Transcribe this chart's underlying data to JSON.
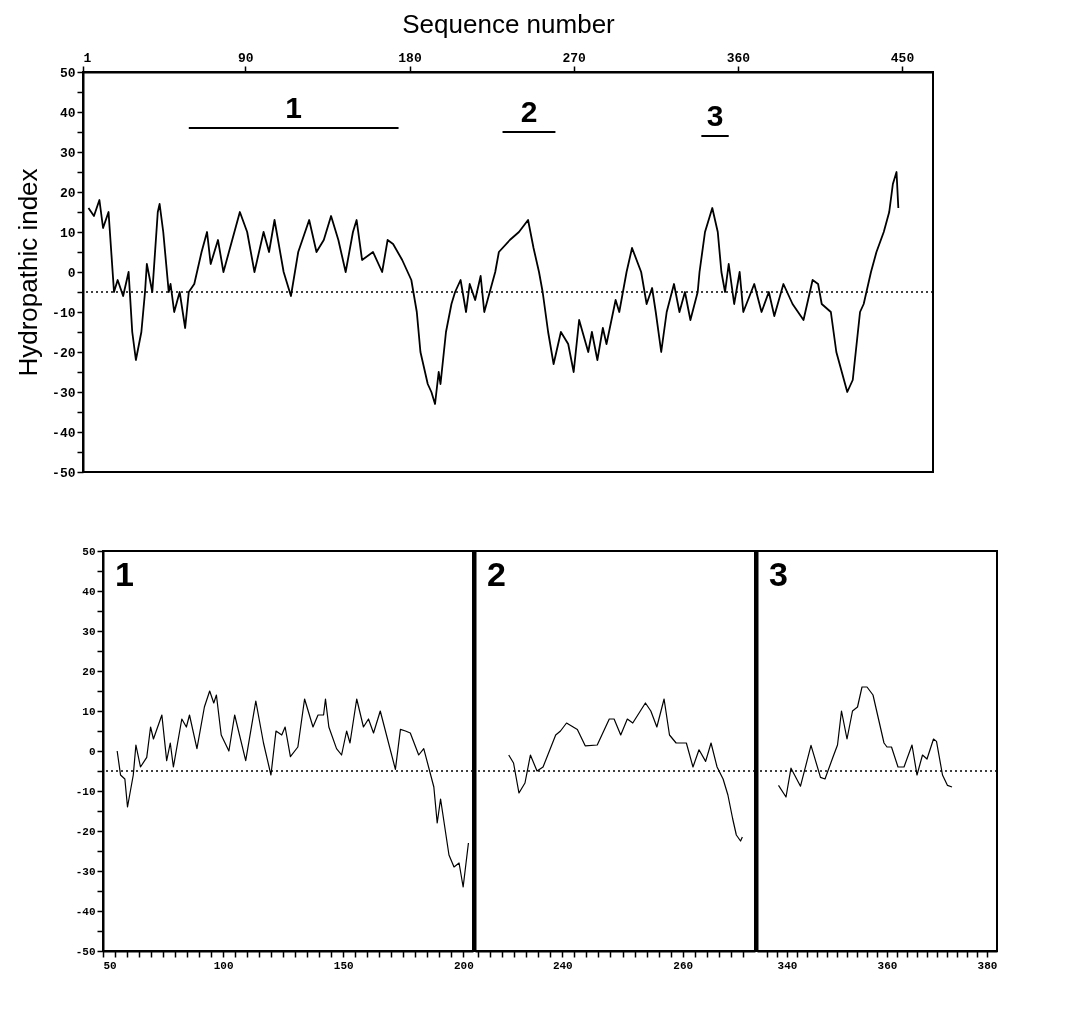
{
  "chart_data": [
    {
      "type": "line",
      "xlabel": "Sequence number",
      "ylabel": "Hydropathic index",
      "xlim": [
        1,
        467
      ],
      "xticks": [
        1,
        90,
        180,
        270,
        360,
        450
      ],
      "ylim": [
        -50,
        50
      ],
      "yticks": [
        -50,
        {
          "value": -45,
          "label": null
        },
        -40,
        {
          "value": -35,
          "label": null
        },
        -30,
        {
          "value": -25,
          "label": null
        },
        -20,
        {
          "value": -15,
          "label": null
        },
        -10,
        {
          "value": -5,
          "label": null
        },
        0,
        {
          "value": 5,
          "label": null
        },
        10,
        {
          "value": 15,
          "label": null
        },
        20,
        {
          "value": 25,
          "label": null
        },
        30,
        {
          "value": 35,
          "label": null
        },
        40,
        {
          "value": 45,
          "label": null
        },
        50
      ],
      "series": [
        {
          "color": "#000000",
          "x": [
            4,
            7,
            10,
            12,
            15,
            18,
            20,
            23,
            26,
            28,
            30,
            33,
            35,
            36,
            39,
            42,
            43,
            45,
            48,
            49,
            51,
            54,
            57,
            59,
            62,
            66,
            69,
            71,
            75,
            78,
            87,
            91,
            95,
            100,
            103,
            106,
            111,
            115,
            119,
            125,
            129,
            133,
            137,
            141,
            145,
            149,
            151,
            154,
            160,
            165,
            168,
            171,
            176,
            181,
            184,
            186,
            190,
            192,
            194,
            196,
            197,
            200,
            203,
            205,
            208,
            211,
            213,
            216,
            219,
            221,
            224,
            227,
            229,
            235,
            240,
            245,
            248,
            251,
            253,
            256,
            259,
            263,
            267,
            270,
            273,
            278,
            280,
            283,
            286,
            288,
            293,
            295,
            299,
            302,
            307,
            310,
            313,
            315,
            318,
            321,
            325,
            328,
            331,
            334,
            338,
            339,
            342,
            346,
            349,
            351,
            353,
            355,
            358,
            361,
            363,
            369,
            373,
            377,
            380,
            385,
            390,
            396,
            401,
            404,
            406,
            411,
            414,
            417,
            420,
            423,
            427,
            429,
            433,
            436,
            440,
            443,
            445,
            447,
            448
          ],
          "values": [
            16,
            14,
            18,
            11,
            15,
            -5,
            -2,
            -6,
            0,
            -15,
            -22,
            -15,
            -5,
            2,
            -5,
            15,
            17,
            10,
            -5,
            -3,
            -10,
            -5,
            -14,
            -5,
            -3,
            5,
            10,
            2,
            8,
            0,
            15,
            10,
            0,
            10,
            5,
            13,
            0,
            -6,
            5,
            13,
            5,
            8,
            14,
            8,
            0,
            10,
            13,
            3,
            5,
            0,
            8,
            7,
            3,
            -2,
            -10,
            -20,
            -28,
            -30,
            -33,
            -25,
            -28,
            -15,
            -8,
            -5,
            -2,
            -10,
            -3,
            -7,
            -1,
            -10,
            -5,
            0,
            5,
            8,
            10,
            13,
            6,
            0,
            -5,
            -15,
            -23,
            -15,
            -18,
            -25,
            -12,
            -20,
            -15,
            -22,
            -14,
            -18,
            -7,
            -10,
            0,
            6,
            0,
            -8,
            -4,
            -10,
            -20,
            -10,
            -3,
            -10,
            -5,
            -12,
            -5,
            0,
            10,
            16,
            10,
            0,
            -5,
            2,
            -8,
            0,
            -10,
            -3,
            -10,
            -5,
            -11,
            -3,
            -8,
            -12,
            -2,
            -3,
            -8,
            -10,
            -20,
            -25,
            -30,
            -27,
            -10,
            -8,
            0,
            5,
            10,
            15,
            22,
            25,
            16
          ]
        },
        {
          "name": "1",
          "color": "#000000",
          "x": [
            59,
            174
          ],
          "values": [
            36,
            36
          ]
        },
        {
          "name": "2",
          "color": "#000000",
          "x": [
            231,
            260
          ],
          "values": [
            35,
            35
          ]
        },
        {
          "name": "3",
          "color": "#000000",
          "x": [
            340,
            355
          ],
          "values": [
            34,
            34
          ]
        }
      ],
      "ref_lines": [
        {
          "axis": "y",
          "value": -5,
          "line_style": "dotted"
        }
      ]
    },
    {
      "type": "line",
      "xlim": [
        50,
        204
      ],
      "xticks": [
        50,
        {
          "value": 55,
          "label": null
        },
        {
          "value": 60,
          "label": null
        },
        {
          "value": 65,
          "label": null
        },
        {
          "value": 70,
          "label": null
        },
        {
          "value": 75,
          "label": null
        },
        {
          "value": 80,
          "label": null
        },
        {
          "value": 85,
          "label": null
        },
        {
          "value": 90,
          "label": null
        },
        {
          "value": 95,
          "label": null
        },
        100,
        {
          "value": 105,
          "label": null
        },
        {
          "value": 110,
          "label": null
        },
        {
          "value": 115,
          "label": null
        },
        {
          "value": 120,
          "label": null
        },
        {
          "value": 125,
          "label": null
        },
        {
          "value": 130,
          "label": null
        },
        {
          "value": 135,
          "label": null
        },
        {
          "value": 140,
          "label": null
        },
        {
          "value": 145,
          "label": null
        },
        150,
        {
          "value": 155,
          "label": null
        },
        {
          "value": 160,
          "label": null
        },
        {
          "value": 165,
          "label": null
        },
        {
          "value": 170,
          "label": null
        },
        {
          "value": 175,
          "label": null
        },
        {
          "value": 180,
          "label": null
        },
        {
          "value": 185,
          "label": null
        },
        {
          "value": 190,
          "label": null
        },
        {
          "value": 195,
          "label": null
        },
        200
      ],
      "ylim": [
        -50,
        50
      ],
      "yticks": [
        -50,
        {
          "value": -45,
          "label": null
        },
        -40,
        {
          "value": -35,
          "label": null
        },
        -30,
        {
          "value": -25,
          "label": null
        },
        -20,
        {
          "value": -15,
          "label": null
        },
        -10,
        {
          "value": -5,
          "label": null
        },
        0,
        {
          "value": 5,
          "label": null
        },
        10,
        {
          "value": 15,
          "label": null
        },
        20,
        {
          "value": 25,
          "label": null
        },
        30,
        {
          "value": 35,
          "label": null
        },
        40,
        {
          "value": 45,
          "label": null
        },
        50
      ],
      "series": [
        {
          "color": "#000000",
          "x": [
            55.9,
            57.3,
            59.1,
            60.2,
            62.6,
            63.7,
            65.6,
            68.2,
            69.8,
            71,
            74.5,
            76.5,
            78,
            79.3,
            82.8,
            84.7,
            86,
            89.1,
            92.2,
            94.4,
            96.1,
            97.2,
            99.2,
            102.4,
            104.8,
            109.4,
            113.6,
            116.8,
            119.9,
            122,
            124.4,
            125.8,
            128,
            131.1,
            133.9,
            137.4,
            139.5,
            141.8,
            142.6,
            144,
            147.2,
            149.3,
            151.4,
            152.8,
            155.6,
            158.4,
            160.5,
            162.6,
            165.4,
            171.7,
            173.8,
            175.9,
            177.9,
            181.4,
            183.5,
            187.7,
            189.1,
            190.5,
            194,
            196.1,
            198.2,
            199.9,
            202.1
          ],
          "values": [
            0,
            -6,
            -7,
            -14,
            -6,
            1.5,
            -4,
            -1.6,
            6,
            3,
            9,
            -2.4,
            2,
            -4,
            8,
            6,
            9,
            0.6,
            11,
            15,
            12,
            14,
            4,
            0,
            9,
            -2.4,
            12.5,
            2,
            -6,
            5,
            4,
            6,
            -1.4,
            1,
            13,
            6,
            9,
            9,
            13,
            6,
            0.6,
            -1,
            5,
            2,
            13,
            6,
            8,
            4.5,
            10,
            -4.6,
            5.4,
            5,
            4.5,
            -1,
            0.6,
            -9,
            -18,
            -12,
            -26,
            -29,
            -28,
            -34,
            -23
          ]
        }
      ],
      "ref_lines": [
        {
          "axis": "y",
          "value": -5,
          "line_style": "dotted"
        }
      ],
      "annotations": [
        "1"
      ]
    },
    {
      "type": "line",
      "xlim": [
        225.5,
        272
      ],
      "xticks": [
        {
          "value": 226,
          "label": null
        },
        {
          "value": 228,
          "label": null
        },
        {
          "value": 230,
          "label": null
        },
        {
          "value": 232,
          "label": null
        },
        {
          "value": 234,
          "label": null
        },
        {
          "value": 236,
          "label": null
        },
        {
          "value": 238,
          "label": null
        },
        240,
        {
          "value": 242,
          "label": null
        },
        {
          "value": 244,
          "label": null
        },
        {
          "value": 246,
          "label": null
        },
        {
          "value": 248,
          "label": null
        },
        {
          "value": 250,
          "label": null
        },
        {
          "value": 252,
          "label": null
        },
        {
          "value": 254,
          "label": null
        },
        {
          "value": 256,
          "label": null
        },
        {
          "value": 258,
          "label": null
        },
        260,
        {
          "value": 262,
          "label": null
        },
        {
          "value": 264,
          "label": null
        },
        {
          "value": 266,
          "label": null
        },
        {
          "value": 268,
          "label": null
        },
        {
          "value": 270,
          "label": null
        }
      ],
      "ylim": [
        -50,
        50
      ],
      "tick_labels": "x",
      "series": [
        {
          "color": "#000000",
          "x": [
            231.1,
            231.9,
            232.8,
            233.8,
            234.7,
            235.8,
            236.8,
            238.9,
            239.7,
            240.7,
            242.5,
            243.8,
            245.8,
            247.8,
            248.6,
            249.7,
            250.8,
            251.7,
            253.8,
            254.7,
            255.7,
            256.9,
            257.8,
            258.9,
            260.6,
            261.7,
            262.7,
            263.8,
            264.7,
            265.7,
            266.7,
            267.5,
            268.3,
            268.9,
            269.6,
            269.9
          ],
          "values": [
            -1,
            -3,
            -10.5,
            -8,
            -1,
            -5,
            -4,
            4,
            5,
            7,
            5.4,
            1.3,
            1.5,
            8,
            8,
            4,
            8,
            7,
            12,
            10,
            6,
            13,
            4,
            2,
            2,
            -4,
            0.3,
            -2.6,
            2,
            -4,
            -7,
            -11,
            -17,
            -21,
            -22.5,
            -21.5
          ]
        }
      ],
      "ref_lines": [
        {
          "axis": "y",
          "value": -5,
          "line_style": "dotted"
        }
      ],
      "annotations": [
        "2"
      ]
    },
    {
      "type": "line",
      "xlim": [
        334,
        382
      ],
      "xticks": [
        {
          "value": 336,
          "label": null
        },
        {
          "value": 338,
          "label": null
        },
        340,
        {
          "value": 342,
          "label": null
        },
        {
          "value": 344,
          "label": null
        },
        {
          "value": 346,
          "label": null
        },
        {
          "value": 348,
          "label": null
        },
        {
          "value": 350,
          "label": null
        },
        {
          "value": 352,
          "label": null
        },
        {
          "value": 354,
          "label": null
        },
        {
          "value": 356,
          "label": null
        },
        {
          "value": 358,
          "label": null
        },
        360,
        {
          "value": 362,
          "label": null
        },
        {
          "value": 364,
          "label": null
        },
        {
          "value": 366,
          "label": null
        },
        {
          "value": 368,
          "label": null
        },
        {
          "value": 370,
          "label": null
        },
        {
          "value": 372,
          "label": null
        },
        {
          "value": 374,
          "label": null
        },
        {
          "value": 376,
          "label": null
        },
        {
          "value": 378,
          "label": null
        },
        380
      ],
      "ylim": [
        -50,
        50
      ],
      "tick_labels": "x",
      "series": [
        {
          "color": "#000000",
          "x": [
            338.3,
            339.8,
            340.8,
            342.7,
            344.8,
            346.7,
            347.6,
            349.2,
            350.1,
            350.9,
            352,
            353.1,
            354.1,
            355,
            356,
            357.2,
            359.4,
            360,
            360.9,
            362.2,
            363.4,
            365,
            366,
            367.1,
            368,
            369.3,
            369.9,
            371.1,
            372.1,
            373
          ],
          "values": [
            -8.6,
            -11.5,
            -4.3,
            -8.8,
            1.4,
            -6.6,
            -7,
            -1.5,
            1.5,
            10,
            3,
            10,
            11,
            16,
            16,
            14,
            2,
            1,
            1,
            -4,
            -4,
            1.5,
            -6,
            -1,
            -2,
            3,
            2.4,
            -6,
            -8.6,
            -9
          ]
        }
      ],
      "ref_lines": [
        {
          "axis": "y",
          "value": -5,
          "line_style": "dotted"
        }
      ],
      "annotations": [
        "3"
      ]
    }
  ]
}
